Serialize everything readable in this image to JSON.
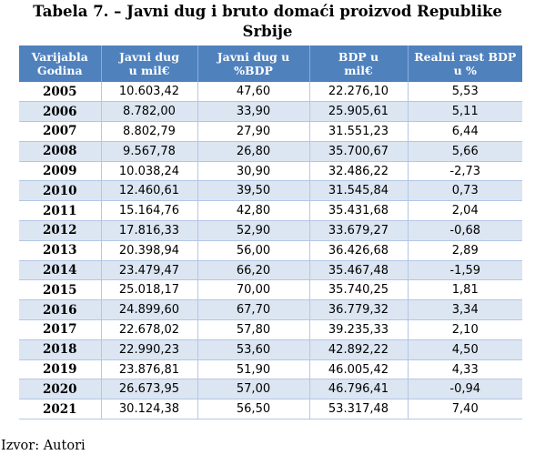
{
  "title": {
    "line1": "Tabela 7. – Javni dug i bruto domaći proizvod Republike",
    "line2": "Srbije"
  },
  "table": {
    "headers": [
      [
        "Varijabla",
        "Godina"
      ],
      [
        "Javni dug",
        "u mil€"
      ],
      [
        "Javni dug u",
        "%BDP"
      ],
      [
        "BDP u",
        "mil€"
      ],
      [
        "Realni rast BDP",
        "u %"
      ]
    ],
    "rows": [
      [
        "2005",
        "10.603,42",
        "47,60",
        "22.276,10",
        "5,53"
      ],
      [
        "2006",
        "8.782,00",
        "33,90",
        "25.905,61",
        "5,11"
      ],
      [
        "2007",
        "8.802,79",
        "27,90",
        "31.551,23",
        "6,44"
      ],
      [
        "2008",
        "9.567,78",
        "26,80",
        "35.700,67",
        "5,66"
      ],
      [
        "2009",
        "10.038,24",
        "30,90",
        "32.486,22",
        "-2,73"
      ],
      [
        "2010",
        "12.460,61",
        "39,50",
        "31.545,84",
        "0,73"
      ],
      [
        "2011",
        "15.164,76",
        "42,80",
        "35.431,68",
        "2,04"
      ],
      [
        "2012",
        "17.816,33",
        "52,90",
        "33.679,27",
        "-0,68"
      ],
      [
        "2013",
        "20.398,94",
        "56,00",
        "36.426,68",
        "2,89"
      ],
      [
        "2014",
        "23.479,47",
        "66,20",
        "35.467,48",
        "-1,59"
      ],
      [
        "2015",
        "25.018,17",
        "70,00",
        "35.740,25",
        "1,81"
      ],
      [
        "2016",
        "24.899,60",
        "67,70",
        "36.779,32",
        "3,34"
      ],
      [
        "2017",
        "22.678,02",
        "57,80",
        "39.235,33",
        "2,10"
      ],
      [
        "2018",
        "22.990,23",
        "53,60",
        "42.892,22",
        "4,50"
      ],
      [
        "2019",
        "23.876,81",
        "51,90",
        "46.005,42",
        "4,33"
      ],
      [
        "2020",
        "26.673,95",
        "57,00",
        "46.796,41",
        "-0,94"
      ],
      [
        "2021",
        "30.124,38",
        "56,50",
        "53.317,48",
        "7,40"
      ]
    ]
  },
  "source": "Izvor: Autori",
  "colors": {
    "header_bg": "#4f81bd",
    "header_text": "#ffffff",
    "band_row_bg": "#dce6f2",
    "row_bg": "#ffffff"
  }
}
